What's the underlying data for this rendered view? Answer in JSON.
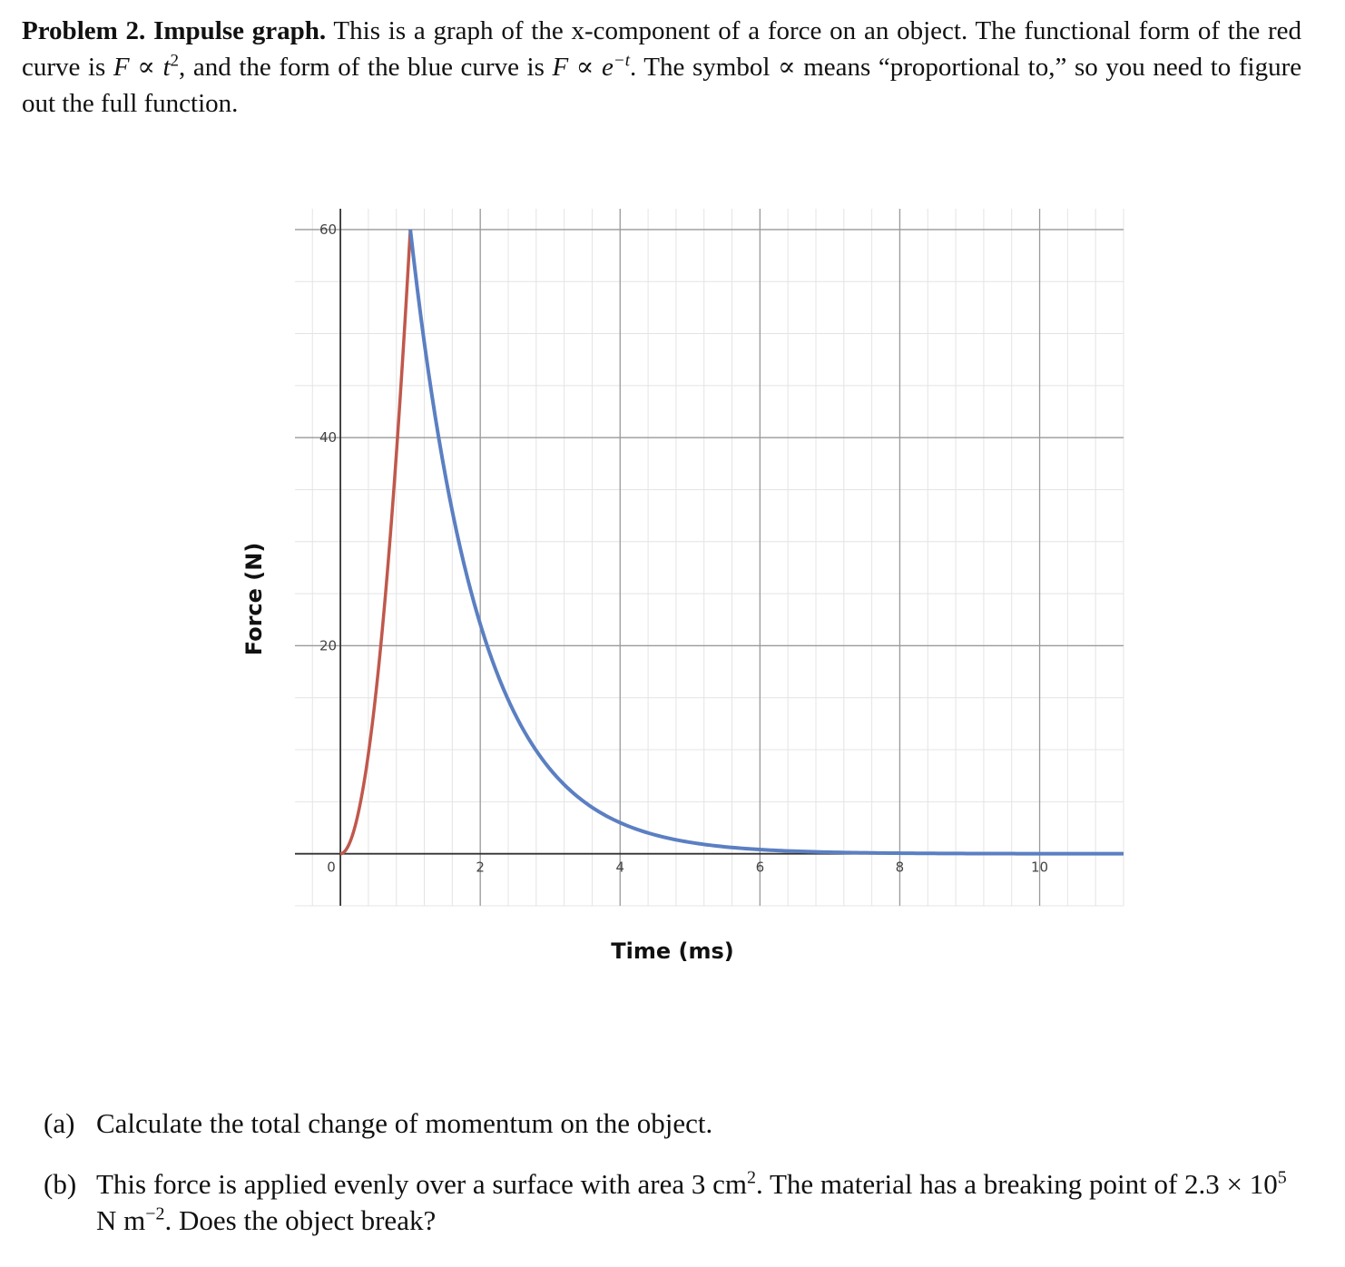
{
  "problem": {
    "heading": "Problem 2. Impulse graph.",
    "text_1": "This is a graph of the x-component of a force on an object. The functional form of the red curve is",
    "F": "F",
    "prop": "∝",
    "t": "t",
    "sq": "2",
    "text_2": ", and the form of the blue curve is",
    "e": "e",
    "neg_t": "−t",
    "text_3": ". The symbol",
    "text_4": "means “proportional to,” so you need to figure out the full function."
  },
  "chart_data": {
    "type": "line",
    "xlabel": "Time (ms)",
    "ylabel": "Force (N)",
    "xlim": [
      -0.65,
      11.2
    ],
    "ylim": [
      -5,
      62
    ],
    "x_ticks": [
      "0",
      "2",
      "4",
      "6",
      "8",
      "10"
    ],
    "y_ticks": [
      "20",
      "40",
      "60"
    ],
    "grid": true,
    "series": [
      {
        "color": "#c0584c",
        "x": [
          0,
          0.1,
          0.2,
          0.3,
          0.4,
          0.5,
          0.6,
          0.7,
          0.8,
          0.9,
          1.0
        ],
        "y": [
          0,
          0.6,
          2.4,
          5.4,
          9.6,
          15,
          21.6,
          29.4,
          38.4,
          48.6,
          60
        ]
      },
      {
        "color": "#5b7fc2",
        "x": [
          1,
          1.5,
          2,
          2.5,
          3,
          3.5,
          4,
          4.5,
          5,
          6,
          7,
          8,
          9,
          10,
          11.2
        ],
        "y": [
          60,
          36.4,
          22.1,
          13.4,
          8.1,
          4.9,
          3.0,
          1.8,
          1.1,
          0.4,
          0.15,
          0.05,
          0.02,
          0.01,
          0
        ]
      }
    ]
  },
  "questions": [
    {
      "label": "(a)",
      "text": "Calculate the total change of momentum on the object."
    },
    {
      "label": "(b)",
      "text_1": "This force is applied evenly over a surface with area 3 cm",
      "area_exp": "2",
      "text_2": ". The material has a breaking point of 2.3 × 10",
      "exp5": "5",
      "text_3": " N m",
      "exp_m2": "−2",
      "text_4": ". Does the object break?"
    }
  ]
}
